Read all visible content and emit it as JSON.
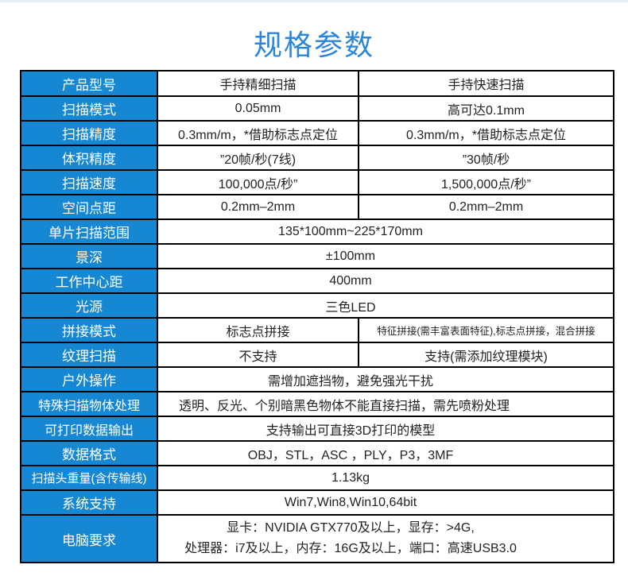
{
  "page": {
    "title": "规格参数"
  },
  "colors": {
    "accent_blue": "#1687d2",
    "title_blue": "#2b86d9",
    "border": "#000000",
    "value_text": "#222222"
  },
  "table": {
    "rows": [
      {
        "label": "产品型号",
        "cells": [
          "手持精细扫描",
          "手持快速扫描"
        ]
      },
      {
        "label": "扫描模式",
        "cells": [
          "0.05mm",
          "高可达0.1mm"
        ]
      },
      {
        "label": "扫描精度",
        "cells": [
          "0.3mm/m，*借助标志点定位",
          "0.3mm/m，*借助标志点定位"
        ]
      },
      {
        "label": "体积精度",
        "cells": [
          "”20帧/秒(7线)",
          "”30帧/秒"
        ]
      },
      {
        "label": "扫描速度",
        "cells": [
          "100,000点/秒”",
          "1,500,000点/秒”"
        ]
      },
      {
        "label": "空间点距",
        "cells": [
          "0.2mm–2mm",
          "0.2mm–2mm"
        ]
      },
      {
        "label": "单片扫描范围",
        "span": "135*100mm~225*170mm"
      },
      {
        "label": "景深",
        "span": "±100mm"
      },
      {
        "label": "工作中心距",
        "span": "400mm"
      },
      {
        "label": "光源",
        "span": "三色LED"
      },
      {
        "label": "拼接模式",
        "cells": [
          "标志点拼接",
          "特征拼接(需丰富表面特征),标志点拼接，混合拼接"
        ],
        "small_right": true
      },
      {
        "label": "纹理扫描",
        "cells": [
          "不支持",
          "支持(需添加纹理模块)"
        ]
      },
      {
        "label": "户外操作",
        "span": "需增加遮挡物，避免强光干扰"
      },
      {
        "label": "特殊扫描物体处理",
        "span": "透明、反光、个别暗黑色物体不能直接扫描，需先喷粉处理",
        "align": "left"
      },
      {
        "label": "可打印数据输出",
        "span": "支持输出可直接3D打印的模型"
      },
      {
        "label": "数据格式",
        "span": "OBJ，STL，ASC ，PLY，P3，3MF"
      },
      {
        "label": "扫描头重量(含传输线)",
        "span": "1.13kg"
      },
      {
        "label": "系统支持",
        "span": "Win7,Win8,Win10,64bit"
      },
      {
        "label": "电脑要求",
        "span_lines": [
          "显卡：NVIDIA GTX770及以上，显存：>4G,",
          "处理器：i7及以上，内存：16G及以上，端口：高速USB3.0"
        ],
        "tall": true
      }
    ]
  }
}
